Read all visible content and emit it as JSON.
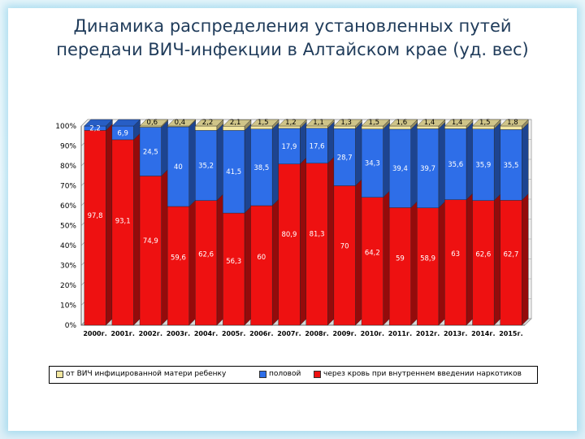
{
  "slide": {
    "title_line1": "Динамика распределения установленных путей",
    "title_line2": "передачи ВИЧ-инфекции  в Алтайском крае (уд. вес)"
  },
  "colors": {
    "mother": "#f3e7a0",
    "sexual": "#2e6ee8",
    "blood": "#ee1111"
  },
  "chart_data": {
    "type": "bar",
    "stacked": true,
    "categories": [
      "2000г.",
      "2001г.",
      "2002г.",
      "2003г.",
      "2004г.",
      "2005г.",
      "2006г.",
      "2007г.",
      "2008г.",
      "2009г.",
      "2010г.",
      "2011г.",
      "2012г.",
      "2013г.",
      "2014г.",
      "2015г."
    ],
    "series": [
      {
        "name": "через кровь при внутреннем введении наркотиков",
        "values": [
          97.8,
          93.1,
          74.9,
          59.6,
          62.6,
          56.3,
          60,
          80.9,
          81.3,
          70,
          64.2,
          59,
          58.9,
          63,
          62.6,
          62.7
        ],
        "labels": [
          "97,8",
          "93,1",
          "74,9",
          "59,6",
          "62,6",
          "56,3",
          "60",
          "80,9",
          "81,3",
          "70",
          "64,2",
          "59",
          "58,9",
          "63",
          "62,6",
          "62,7"
        ]
      },
      {
        "name": "половой",
        "values": [
          2.2,
          6.9,
          24.5,
          40,
          35.2,
          41.5,
          38.5,
          17.9,
          17.6,
          28.7,
          34.3,
          39.4,
          39.7,
          35.6,
          35.9,
          35.5
        ],
        "labels": [
          "2,2",
          "6,9",
          "24,5",
          "40",
          "35,2",
          "41,5",
          "38,5",
          "17,9",
          "17,6",
          "28,7",
          "34,3",
          "39,4",
          "39,7",
          "35,6",
          "35,9",
          "35,5"
        ]
      },
      {
        "name": "от ВИЧ инфицированной матери ребенку",
        "values": [
          0,
          0,
          0.6,
          0.4,
          2.2,
          2.1,
          1.5,
          1.2,
          1.1,
          1.3,
          1.5,
          1.6,
          1.4,
          1.4,
          1.5,
          1.8
        ],
        "labels": [
          "",
          "",
          "0,6",
          "0,4",
          "2,2",
          "2,1",
          "1,5",
          "1,2",
          "1,1",
          "1,3",
          "1,5",
          "1,6",
          "1,4",
          "1,4",
          "1,5",
          "1,8"
        ]
      }
    ],
    "y_ticks": [
      "0%",
      "10%",
      "20%",
      "30%",
      "40%",
      "50%",
      "60%",
      "70%",
      "80%",
      "90%",
      "100%"
    ],
    "ylim": [
      0,
      100
    ],
    "legend_position": "bottom",
    "legend": [
      {
        "key": "mother",
        "label": "от ВИЧ инфицированной матери ребенку"
      },
      {
        "key": "sexual",
        "label": "половой"
      },
      {
        "key": "blood",
        "label": "через кровь при внутреннем введении наркотиков"
      }
    ]
  }
}
